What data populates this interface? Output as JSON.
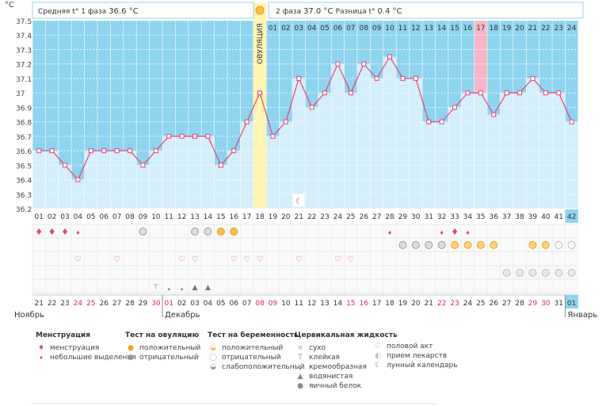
{
  "phase1": {
    "label": "Средняя t° 1 фаза",
    "value": "36.6 °C"
  },
  "phase2": {
    "label": "2 фаза",
    "value": "37.0 °C"
  },
  "diff": {
    "label": "Разница t°",
    "value": "0.4 °C"
  },
  "ovulation_label": "ОВУЛЯЦИЯ",
  "unit": "°C",
  "months": {
    "left": "Ноябрь",
    "middle": "Декабрь",
    "right": "Январь"
  },
  "chart_data": {
    "type": "line",
    "y_ticks": [
      "37.5",
      "37.4",
      "37.3",
      "37.2",
      "37.1",
      "37",
      "36.9",
      "36.8",
      "36.7",
      "36.6",
      "36.5",
      "36.4",
      "36.3",
      "36.2"
    ],
    "ylim": [
      36.2,
      37.5
    ],
    "cycle_days": [
      "01",
      "02",
      "03",
      "04",
      "05",
      "06",
      "07",
      "08",
      "09",
      "10",
      "11",
      "12",
      "13",
      "14",
      "15",
      "16",
      "17",
      "18",
      "19",
      "20",
      "21",
      "22",
      "23",
      "24",
      "25",
      "26",
      "27",
      "28",
      "29",
      "30",
      "31",
      "32",
      "33",
      "34",
      "35",
      "36",
      "37",
      "38",
      "39",
      "40",
      "41",
      "42"
    ],
    "temperatures": [
      36.6,
      36.6,
      36.5,
      36.4,
      36.6,
      36.6,
      36.6,
      36.6,
      36.5,
      36.6,
      36.7,
      36.7,
      36.7,
      36.7,
      36.5,
      36.6,
      36.8,
      37.0,
      36.7,
      36.8,
      37.1,
      36.9,
      37.0,
      37.2,
      37.0,
      37.2,
      37.1,
      37.25,
      37.1,
      37.1,
      36.8,
      36.8,
      36.9,
      37.0,
      37.0,
      36.85,
      37.0,
      37.0,
      37.1,
      37.0,
      37.0,
      36.8
    ],
    "ovulation_day": 18,
    "luteal_day_labels": [
      "01",
      "02",
      "03",
      "04",
      "05",
      "06",
      "07",
      "08",
      "09",
      "10",
      "11",
      "12",
      "13",
      "14",
      "15",
      "16",
      "17",
      "18",
      "19",
      "20",
      "21",
      "22",
      "23",
      "24"
    ],
    "highlight_luteal_day": "17",
    "dates": [
      "21",
      "22",
      "23",
      "24",
      "25",
      "26",
      "27",
      "28",
      "29",
      "30",
      "01",
      "02",
      "03",
      "04",
      "05",
      "06",
      "07",
      "08",
      "09",
      "10",
      "11",
      "12",
      "13",
      "14",
      "15",
      "16",
      "17",
      "18",
      "19",
      "20",
      "21",
      "22",
      "23",
      "24",
      "25",
      "26",
      "27",
      "28",
      "29",
      "30",
      "31",
      "01"
    ],
    "red_dates": [
      3,
      4,
      9,
      10,
      17,
      18,
      24,
      25,
      31,
      32,
      38,
      39
    ],
    "lunar_day": 21,
    "events": {
      "menstruation": [
        1,
        2,
        3
      ],
      "spotting": [
        4,
        28,
        32
      ],
      "menstruation_row1_extra": [
        33
      ],
      "spotting_row1_extra": [
        34
      ],
      "ovulation_positive": [
        15,
        16
      ],
      "ovulation_negative": [
        9,
        13,
        14
      ],
      "intercourse": [
        4,
        7,
        12,
        13,
        16,
        17,
        18,
        21,
        24,
        25
      ],
      "preg_weak": [
        29,
        30,
        31,
        32
      ],
      "preg_positive": [
        33,
        34,
        35,
        36,
        39,
        40
      ],
      "preg_negative": [
        41,
        42
      ],
      "medication": [
        37,
        38,
        39,
        40,
        41,
        42
      ],
      "cervical": [
        {
          "day": 10,
          "type": "sticky"
        },
        {
          "day": 11,
          "type": "creamy"
        },
        {
          "day": 12,
          "type": "creamy"
        },
        {
          "day": 13,
          "type": "watery"
        },
        {
          "day": 14,
          "type": "watery"
        }
      ]
    }
  },
  "legend": {
    "menstruation": {
      "title": "Менструация",
      "items": [
        "менструация",
        "небольшие выделения"
      ]
    },
    "ovulation_test": {
      "title": "Тест на овуляцию",
      "items": [
        "положительный",
        "отрицательный"
      ]
    },
    "pregnancy_test": {
      "title": "Тест на беременность",
      "items": [
        "положительный",
        "отрицательный",
        "слабоположительный"
      ]
    },
    "cervical": {
      "title": "Цервикальная жидкость",
      "items": [
        "сухо",
        "клейкая",
        "кремообразная",
        "водянистая",
        "яичный белок"
      ]
    },
    "other": {
      "items": [
        "половой акт",
        "прием лекарств",
        "лунный календарь"
      ]
    }
  },
  "colors": {
    "high": "#8fd4ef",
    "low": "#d4eefa",
    "line": "#e2457a",
    "ovulation": "#fff4b0",
    "highlight": "#f7b6c8",
    "red_text": "#e0245a"
  }
}
